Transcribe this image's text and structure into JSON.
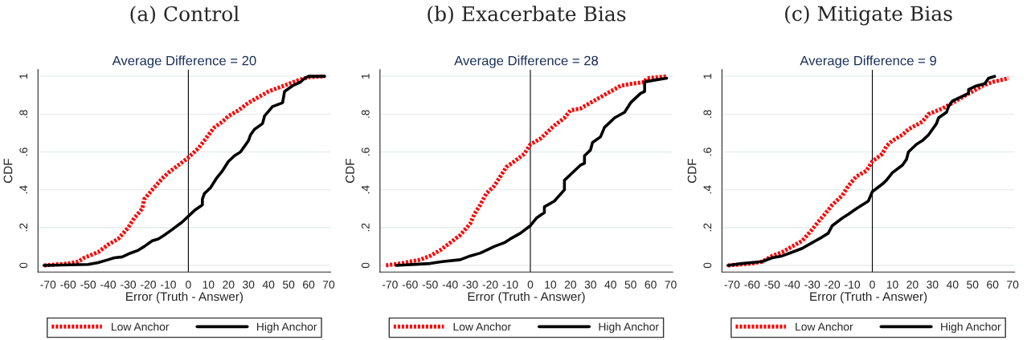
{
  "chart_data": [
    {
      "type": "line",
      "title": "(a) Control",
      "subtitle": "Average Difference = 20",
      "xlabel": "Error (Truth - Answer)",
      "ylabel": "CDF",
      "xlim": [
        -75,
        71
      ],
      "ylim": [
        -0.035,
        1.035
      ],
      "xticks": [
        -70,
        -60,
        -50,
        -40,
        -30,
        -20,
        -10,
        0,
        10,
        20,
        30,
        40,
        50,
        60,
        70
      ],
      "yticks": [
        0,
        {
          "value": 0.2,
          "label": ".2"
        },
        {
          "value": 0.4,
          "label": ".4"
        },
        {
          "value": 0.6,
          "label": ".6"
        },
        {
          "value": 0.8,
          "label": ".8"
        },
        1
      ],
      "grid": "y",
      "legend": "bottom",
      "ref_lines": [
        {
          "axis": "x",
          "value": 0,
          "color": "#000000"
        }
      ],
      "series": [
        {
          "name": "Low Anchor",
          "color": "#ff0000",
          "line_style": "dotted",
          "x": [
            -72,
            -60,
            -55,
            -52,
            -45,
            -40,
            -35,
            -30,
            -27,
            -23,
            -22,
            -18,
            -13,
            -10,
            -5,
            0,
            5,
            8,
            10,
            13,
            17,
            20,
            25,
            30,
            35,
            40,
            45,
            50,
            55,
            60,
            68
          ],
          "values": [
            0,
            0.01,
            0.02,
            0.04,
            0.07,
            0.11,
            0.14,
            0.2,
            0.25,
            0.3,
            0.35,
            0.4,
            0.46,
            0.49,
            0.53,
            0.57,
            0.62,
            0.66,
            0.69,
            0.73,
            0.76,
            0.79,
            0.82,
            0.86,
            0.89,
            0.92,
            0.94,
            0.96,
            0.98,
            0.995,
            1.0
          ]
        },
        {
          "name": "High Anchor",
          "color": "#000000",
          "line_style": "solid",
          "x": [
            -72,
            -50,
            -45,
            -40,
            -37,
            -33,
            -30,
            -25,
            -22,
            -18,
            -15,
            -12,
            -8,
            -3,
            0,
            3,
            7,
            7,
            8,
            11,
            14,
            17,
            20,
            23,
            26,
            30,
            31,
            33,
            37,
            38,
            42,
            47,
            48,
            52,
            56,
            58,
            60,
            68
          ],
          "values": [
            0,
            0.005,
            0.015,
            0.03,
            0.04,
            0.045,
            0.06,
            0.08,
            0.1,
            0.13,
            0.14,
            0.16,
            0.19,
            0.23,
            0.26,
            0.29,
            0.32,
            0.35,
            0.38,
            0.41,
            0.46,
            0.5,
            0.55,
            0.58,
            0.6,
            0.66,
            0.69,
            0.72,
            0.75,
            0.79,
            0.84,
            0.86,
            0.92,
            0.95,
            0.97,
            0.99,
            1.0,
            1.0
          ]
        }
      ]
    },
    {
      "type": "line",
      "title": "(b) Exacerbate Bias",
      "subtitle": "Average Difference = 28",
      "xlabel": "Error (Truth - Answer)",
      "ylabel": "CDF",
      "xlim": [
        -75,
        71
      ],
      "ylim": [
        -0.035,
        1.035
      ],
      "xticks": [
        -70,
        -60,
        -50,
        -40,
        -30,
        -20,
        -10,
        0,
        10,
        20,
        30,
        40,
        50,
        60,
        70
      ],
      "yticks": [
        0,
        {
          "value": 0.2,
          "label": ".2"
        },
        {
          "value": 0.4,
          "label": ".4"
        },
        {
          "value": 0.6,
          "label": ".6"
        },
        {
          "value": 0.8,
          "label": ".8"
        },
        1
      ],
      "grid": "y",
      "legend": "bottom",
      "ref_lines": [
        {
          "axis": "x",
          "value": 0,
          "color": "#000000"
        }
      ],
      "series": [
        {
          "name": "Low Anchor",
          "color": "#ff0000",
          "line_style": "dotted",
          "x": [
            -72,
            -65,
            -55,
            -50,
            -45,
            -40,
            -35,
            -30,
            -28,
            -25,
            -22,
            -18,
            -15,
            -12,
            -8,
            -3,
            0,
            5,
            8,
            12,
            17,
            20,
            25,
            30,
            35,
            40,
            45,
            50,
            57,
            58,
            68
          ],
          "values": [
            0,
            0.01,
            0.03,
            0.05,
            0.08,
            0.12,
            0.16,
            0.22,
            0.27,
            0.32,
            0.38,
            0.42,
            0.47,
            0.52,
            0.55,
            0.59,
            0.64,
            0.67,
            0.7,
            0.74,
            0.78,
            0.82,
            0.83,
            0.86,
            0.89,
            0.92,
            0.95,
            0.96,
            0.97,
            0.99,
            1.0
          ]
        },
        {
          "name": "High Anchor",
          "color": "#000000",
          "line_style": "solid",
          "x": [
            -67,
            -50,
            -44,
            -35,
            -30,
            -25,
            -22,
            -18,
            -13,
            -10,
            -5,
            0,
            3,
            7,
            7,
            12,
            17,
            17,
            20,
            25,
            27,
            27,
            30,
            31,
            35,
            37,
            42,
            47,
            50,
            55,
            57,
            57,
            62,
            68
          ],
          "values": [
            0,
            0.01,
            0.02,
            0.03,
            0.05,
            0.065,
            0.08,
            0.1,
            0.12,
            0.14,
            0.17,
            0.21,
            0.25,
            0.28,
            0.31,
            0.34,
            0.4,
            0.45,
            0.48,
            0.53,
            0.54,
            0.58,
            0.61,
            0.65,
            0.68,
            0.73,
            0.78,
            0.81,
            0.86,
            0.91,
            0.92,
            0.97,
            0.98,
            0.99
          ]
        }
      ]
    },
    {
      "type": "line",
      "title": "(c) Mitigate Bias",
      "subtitle": "Average Difference = 9",
      "xlabel": "Error (Truth - Answer)",
      "ylabel": "CDF",
      "xlim": [
        -75,
        71
      ],
      "ylim": [
        -0.035,
        1.035
      ],
      "xticks": [
        -70,
        -60,
        -50,
        -40,
        -30,
        -20,
        -10,
        0,
        10,
        20,
        30,
        40,
        50,
        60,
        70
      ],
      "yticks": [
        0,
        {
          "value": 0.2,
          "label": ".2"
        },
        {
          "value": 0.4,
          "label": ".4"
        },
        {
          "value": 0.6,
          "label": ".6"
        },
        {
          "value": 0.8,
          "label": ".8"
        },
        1
      ],
      "grid": "y",
      "legend": "bottom",
      "ref_lines": [
        {
          "axis": "x",
          "value": 0,
          "color": "#000000"
        }
      ],
      "series": [
        {
          "name": "Low Anchor",
          "color": "#ff0000",
          "line_style": "dotted",
          "x": [
            -72,
            -60,
            -55,
            -50,
            -45,
            -40,
            -35,
            -30,
            -27,
            -23,
            -20,
            -15,
            -12,
            -8,
            -3,
            0,
            5,
            7,
            10,
            15,
            18,
            25,
            28,
            35,
            40,
            45,
            50,
            55,
            60,
            68
          ],
          "values": [
            0,
            0.01,
            0.02,
            0.05,
            0.07,
            0.1,
            0.13,
            0.19,
            0.23,
            0.28,
            0.32,
            0.37,
            0.42,
            0.47,
            0.5,
            0.55,
            0.59,
            0.63,
            0.66,
            0.69,
            0.72,
            0.76,
            0.8,
            0.83,
            0.86,
            0.89,
            0.92,
            0.95,
            0.97,
            0.99
          ]
        },
        {
          "name": "High Anchor",
          "color": "#000000",
          "line_style": "solid",
          "x": [
            -72,
            -65,
            -55,
            -50,
            -45,
            -40,
            -35,
            -30,
            -25,
            -22,
            -20,
            -15,
            -12,
            -8,
            -2,
            0,
            5,
            7,
            10,
            15,
            17,
            18,
            22,
            25,
            28,
            30,
            32,
            33,
            37,
            38,
            40,
            48,
            48,
            52,
            56,
            58,
            61
          ],
          "values": [
            0,
            0.01,
            0.02,
            0.04,
            0.05,
            0.07,
            0.09,
            0.12,
            0.15,
            0.17,
            0.21,
            0.25,
            0.27,
            0.3,
            0.34,
            0.39,
            0.43,
            0.45,
            0.49,
            0.53,
            0.56,
            0.6,
            0.64,
            0.66,
            0.69,
            0.72,
            0.75,
            0.78,
            0.81,
            0.84,
            0.87,
            0.91,
            0.93,
            0.95,
            0.96,
            0.99,
            1.0
          ]
        }
      ]
    }
  ]
}
